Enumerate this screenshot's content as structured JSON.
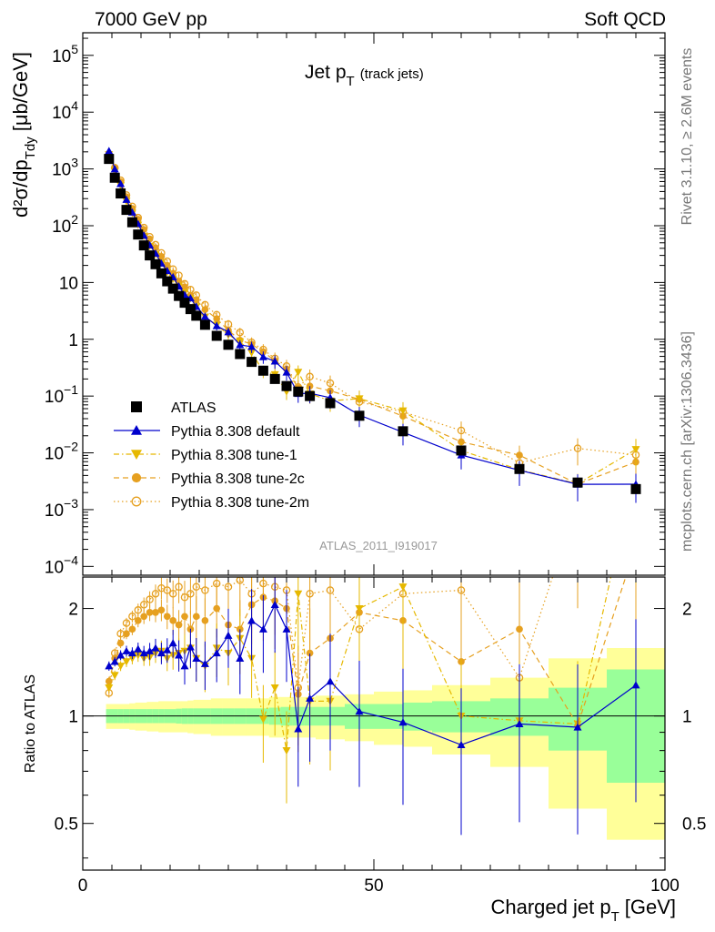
{
  "header": {
    "left": "7000 GeV pp",
    "right": "Soft QCD"
  },
  "side_labels": {
    "rivet": "Rivet 3.1.10, ≥ 2.6M events",
    "mcplots": "mcplots.cern.ch [arXiv:1306.3436]"
  },
  "analysis_label": "ATLAS_2011_I919017",
  "chart_data": {
    "type": "scatter",
    "title": "Jet p",
    "title_subscript": "T",
    "title_suffix": "(track jets)",
    "xlabel": "Charged jet p",
    "xlabel_subscript": "T",
    "xlabel_unit": "[GeV]",
    "ylabel": "d²σ/dp",
    "ylabel_subscript": "Tdy",
    "ylabel_unit": "[μb/GeV]",
    "ratio_ylabel": "Ratio to ATLAS",
    "xlim": [
      0,
      100
    ],
    "ylim": [
      7e-05,
      250000
    ],
    "yscale": "log",
    "ratio_ylim": [
      0.37,
      2.45
    ],
    "ratio_yscale": "log",
    "xticks": [
      "0",
      "50",
      "100"
    ],
    "yticks": [
      {
        "base": "10",
        "exp": "5"
      },
      {
        "base": "10",
        "exp": "4"
      },
      {
        "base": "10",
        "exp": "3"
      },
      {
        "base": "10",
        "exp": "2"
      },
      {
        "base": "10",
        "exp": ""
      },
      {
        "base": "1",
        "exp": ""
      },
      {
        "base": "10",
        "exp": "−1"
      },
      {
        "base": "10",
        "exp": "−2"
      },
      {
        "base": "10",
        "exp": "−3"
      },
      {
        "base": "10",
        "exp": "−4"
      }
    ],
    "ratio_yticks": [
      "2",
      "1",
      "0.5"
    ],
    "legend_position": "bottom-left",
    "band_colors": {
      "stat": "#99ff99",
      "syst": "#ffff99"
    },
    "ratio_band": {
      "edges": [
        4,
        5,
        6,
        7,
        8,
        9,
        10,
        11,
        12,
        13,
        14,
        15,
        16,
        17,
        18,
        19,
        20,
        22,
        24,
        26,
        28,
        30,
        32,
        34,
        36,
        38,
        40,
        45,
        50,
        55,
        60,
        70,
        80,
        90,
        100
      ],
      "stat_half": [
        0.045,
        0.045,
        0.045,
        0.045,
        0.045,
        0.045,
        0.045,
        0.045,
        0.045,
        0.045,
        0.045,
        0.045,
        0.048,
        0.05,
        0.05,
        0.05,
        0.05,
        0.05,
        0.05,
        0.05,
        0.05,
        0.05,
        0.055,
        0.06,
        0.06,
        0.06,
        0.06,
        0.08,
        0.08,
        0.09,
        0.1,
        0.12,
        0.2,
        0.35
      ],
      "syst_half": [
        0.08,
        0.08,
        0.08,
        0.08,
        0.085,
        0.09,
        0.09,
        0.095,
        0.095,
        0.1,
        0.1,
        0.1,
        0.1,
        0.1,
        0.105,
        0.11,
        0.11,
        0.12,
        0.12,
        0.12,
        0.12,
        0.12,
        0.13,
        0.13,
        0.13,
        0.13,
        0.14,
        0.15,
        0.17,
        0.18,
        0.22,
        0.28,
        0.45,
        0.55
      ]
    },
    "series": [
      {
        "name": "ATLAS",
        "color": "#000000",
        "marker": "square",
        "x": [
          4.5,
          5.5,
          6.5,
          7.5,
          8.5,
          9.5,
          10.5,
          11.5,
          12.5,
          13.5,
          14.5,
          15.5,
          16.5,
          17.5,
          18.5,
          19.5,
          21,
          23,
          25,
          27,
          29,
          31,
          33,
          35,
          37,
          39,
          42.5,
          47.5,
          55,
          65,
          75,
          85,
          95
        ],
        "y": [
          1500,
          700,
          370,
          190,
          115,
          70,
          45,
          30,
          21,
          14.5,
          10.5,
          7.8,
          5.8,
          4.4,
          3.4,
          2.6,
          1.8,
          1.15,
          0.8,
          0.55,
          0.4,
          0.28,
          0.2,
          0.15,
          0.12,
          0.1,
          0.075,
          0.045,
          0.024,
          0.011,
          0.0052,
          0.003,
          0.0023
        ]
      },
      {
        "name": "Pythia 8.308 default",
        "color": "#0000cc",
        "marker": "triangle-up",
        "line": "solid",
        "x": [
          4.5,
          5.5,
          6.5,
          7.5,
          8.5,
          9.5,
          10.5,
          11.5,
          12.5,
          13.5,
          14.5,
          15.5,
          16.5,
          17.5,
          18.5,
          19.5,
          21,
          23,
          25,
          27,
          29,
          31,
          33,
          35,
          37,
          39,
          42.5,
          47.5,
          55,
          65,
          75,
          85,
          95
        ],
        "ratio": [
          1.38,
          1.42,
          1.48,
          1.52,
          1.5,
          1.54,
          1.5,
          1.52,
          1.55,
          1.5,
          1.53,
          1.6,
          1.48,
          1.38,
          1.56,
          1.45,
          1.4,
          1.5,
          1.68,
          1.45,
          1.85,
          1.75,
          2.05,
          1.75,
          0.92,
          1.12,
          1.25,
          1.03,
          0.96,
          0.83,
          0.95,
          0.93,
          1.22
        ]
      },
      {
        "name": "Pythia 8.308 tune-1",
        "color": "#e6b800",
        "marker": "triangle-down",
        "line": "dashdot",
        "x": [
          4.5,
          5.5,
          6.5,
          7.5,
          8.5,
          9.5,
          10.5,
          11.5,
          12.5,
          13.5,
          14.5,
          15.5,
          16.5,
          17.5,
          18.5,
          19.5,
          21,
          23,
          25,
          27,
          29,
          31,
          33,
          35,
          37,
          39,
          42.5,
          47.5,
          55,
          65,
          75,
          85,
          95
        ],
        "ratio": [
          1.2,
          1.3,
          1.38,
          1.42,
          1.45,
          1.48,
          1.45,
          1.46,
          1.5,
          1.52,
          1.45,
          1.48,
          1.5,
          1.52,
          1.55,
          1.45,
          1.38,
          1.55,
          1.5,
          1.65,
          1.45,
          0.98,
          1.2,
          0.8,
          2.2,
          1.1,
          1.1,
          2.0,
          2.3,
          1.0,
          0.97,
          0.95,
          5.0
        ]
      },
      {
        "name": "Pythia 8.308 tune-2c",
        "color": "#e6a020",
        "marker": "circle",
        "line": "dashed",
        "x": [
          4.5,
          5.5,
          6.5,
          7.5,
          8.5,
          9.5,
          10.5,
          11.5,
          12.5,
          13.5,
          14.5,
          15.5,
          16.5,
          17.5,
          18.5,
          19.5,
          21,
          23,
          25,
          27,
          29,
          31,
          33,
          35,
          37,
          39,
          42.5,
          47.5,
          55,
          65,
          75,
          85,
          95
        ],
        "ratio": [
          1.25,
          1.45,
          1.6,
          1.7,
          1.75,
          1.85,
          1.9,
          1.95,
          1.95,
          1.98,
          1.9,
          1.85,
          1.8,
          1.9,
          1.75,
          1.9,
          1.85,
          2.0,
          1.8,
          1.75,
          2.05,
          2.15,
          2.1,
          2.0,
          1.15,
          1.5,
          1.65,
          1.95,
          1.85,
          1.42,
          1.75,
          0.94,
          3.0
        ]
      },
      {
        "name": "Pythia 8.308 tune-2m",
        "color": "#e6a020",
        "marker": "open-circle",
        "line": "dotted",
        "x": [
          4.5,
          5.5,
          6.5,
          7.5,
          8.5,
          9.5,
          10.5,
          11.5,
          12.5,
          13.5,
          14.5,
          15.5,
          16.5,
          17.5,
          18.5,
          19.5,
          21,
          23,
          25,
          27,
          29,
          31,
          33,
          35,
          37,
          39,
          42.5,
          47.5,
          55,
          65,
          75,
          85,
          95
        ],
        "ratio": [
          1.16,
          1.5,
          1.7,
          1.82,
          1.9,
          1.98,
          2.05,
          2.12,
          2.2,
          2.28,
          2.25,
          2.2,
          2.3,
          2.15,
          2.2,
          2.3,
          2.25,
          2.35,
          2.3,
          2.4,
          2.2,
          2.35,
          2.3,
          2.25,
          1.2,
          2.2,
          2.25,
          1.75,
          2.2,
          2.25,
          1.28,
          4.0,
          4.0
        ]
      }
    ]
  }
}
